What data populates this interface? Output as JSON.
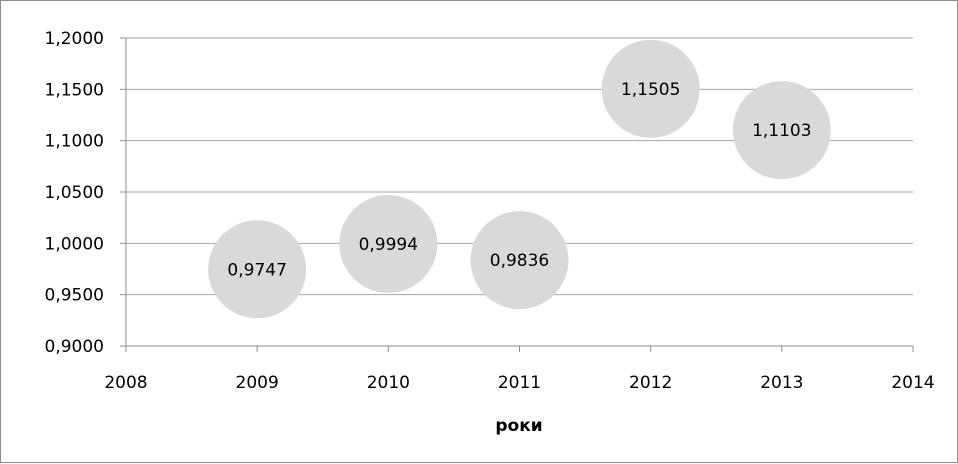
{
  "chart_data": {
    "type": "scatter",
    "title": "",
    "xlabel": "роки",
    "ylabel": "",
    "xlim": [
      2008,
      2014
    ],
    "ylim": [
      0.9,
      1.2
    ],
    "grid": true,
    "x_ticks": [
      "2008",
      "2009",
      "2010",
      "2011",
      "2012",
      "2013",
      "2014"
    ],
    "y_ticks": [
      "0,9000",
      "0,9500",
      "1,0000",
      "1,0500",
      "1,1000",
      "1,1500",
      "1,2000"
    ],
    "series": [
      {
        "x": [
          2009,
          2010,
          2011,
          2012,
          2013
        ],
        "y": [
          0.9747,
          0.9994,
          0.9836,
          1.1505,
          1.1103
        ],
        "labels": [
          "0,9747",
          "0,9994",
          "0,9836",
          "1,1505",
          "1,1103"
        ],
        "color": "#d9d9d9"
      }
    ]
  }
}
